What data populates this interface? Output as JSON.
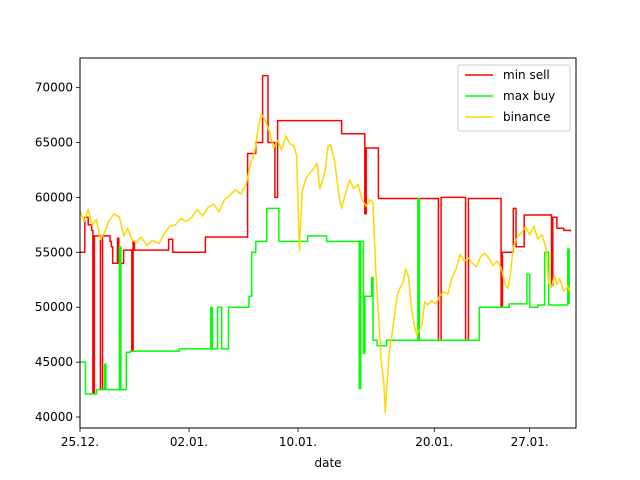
{
  "chart_data": {
    "type": "line",
    "title": "",
    "xlabel": "date",
    "ylabel": "",
    "x_ticks": [
      "25.12.",
      "02.01.",
      "10.01.",
      "20.01.",
      "27.01."
    ],
    "x_tick_day_index": [
      0,
      8,
      16,
      26,
      33
    ],
    "x_range_day_index": [
      0,
      36.4
    ],
    "y_ticks": [
      40000,
      45000,
      50000,
      55000,
      60000,
      65000,
      70000
    ],
    "ylim": [
      39000,
      72700
    ],
    "legend_position": "top-right",
    "series": [
      {
        "name": "min sell",
        "color": "#ff0000",
        "points": [
          [
            0,
            55000
          ],
          [
            0.35,
            55000
          ],
          [
            0.35,
            58200
          ],
          [
            0.6,
            58200
          ],
          [
            0.6,
            57500
          ],
          [
            0.85,
            57500
          ],
          [
            0.85,
            57000
          ],
          [
            0.95,
            57000
          ],
          [
            0.95,
            42200
          ],
          [
            1.05,
            42200
          ],
          [
            1.05,
            56500
          ],
          [
            1.5,
            56500
          ],
          [
            1.5,
            42500
          ],
          [
            1.65,
            42500
          ],
          [
            1.65,
            56500
          ],
          [
            2.2,
            56500
          ],
          [
            2.2,
            56000
          ],
          [
            2.3,
            56000
          ],
          [
            2.3,
            55500
          ],
          [
            2.4,
            55500
          ],
          [
            2.4,
            54000
          ],
          [
            2.75,
            54000
          ],
          [
            2.75,
            56300
          ],
          [
            2.85,
            56300
          ],
          [
            2.85,
            54000
          ],
          [
            3.2,
            54000
          ],
          [
            3.2,
            55200
          ],
          [
            3.8,
            55200
          ],
          [
            3.8,
            46000
          ],
          [
            3.9,
            46000
          ],
          [
            3.9,
            56000
          ],
          [
            4.0,
            56000
          ],
          [
            4.0,
            55200
          ],
          [
            6.5,
            55200
          ],
          [
            6.5,
            56200
          ],
          [
            6.8,
            56200
          ],
          [
            6.8,
            55000
          ],
          [
            9.2,
            55000
          ],
          [
            9.2,
            56400
          ],
          [
            12.3,
            56400
          ],
          [
            12.3,
            64000
          ],
          [
            12.9,
            64000
          ],
          [
            12.9,
            65000
          ],
          [
            13.4,
            65000
          ],
          [
            13.4,
            71100
          ],
          [
            13.8,
            71100
          ],
          [
            13.8,
            65000
          ],
          [
            14.3,
            65000
          ],
          [
            14.3,
            60000
          ],
          [
            14.5,
            60000
          ],
          [
            14.5,
            67000
          ],
          [
            19.2,
            67000
          ],
          [
            19.2,
            65800
          ],
          [
            20.9,
            65800
          ],
          [
            20.9,
            58500
          ],
          [
            21.0,
            58500
          ],
          [
            21.0,
            64500
          ],
          [
            21.9,
            64500
          ],
          [
            21.9,
            59900
          ],
          [
            26.3,
            59900
          ],
          [
            26.3,
            47000
          ],
          [
            26.5,
            47000
          ],
          [
            26.5,
            60000
          ],
          [
            28.3,
            60000
          ],
          [
            28.3,
            47000
          ],
          [
            28.5,
            47000
          ],
          [
            28.5,
            59900
          ],
          [
            30.9,
            59900
          ],
          [
            30.9,
            50000
          ],
          [
            31.0,
            50000
          ],
          [
            31.0,
            55000
          ],
          [
            31.8,
            55000
          ],
          [
            31.8,
            59000
          ],
          [
            32.0,
            59000
          ],
          [
            32.0,
            55500
          ],
          [
            32.6,
            55500
          ],
          [
            32.6,
            58400
          ],
          [
            34.6,
            58400
          ],
          [
            34.6,
            52000
          ],
          [
            34.7,
            52000
          ],
          [
            34.7,
            58200
          ],
          [
            35.0,
            58200
          ],
          [
            35.0,
            57200
          ],
          [
            35.5,
            57200
          ],
          [
            35.5,
            57000
          ],
          [
            36.0,
            57000
          ],
          [
            36.0,
            56900
          ]
        ]
      },
      {
        "name": "max buy",
        "color": "#00ff00",
        "points": [
          [
            0,
            45000
          ],
          [
            0.4,
            45000
          ],
          [
            0.4,
            42100
          ],
          [
            1.2,
            42100
          ],
          [
            1.2,
            42500
          ],
          [
            1.8,
            42500
          ],
          [
            1.8,
            44800
          ],
          [
            1.9,
            44800
          ],
          [
            1.9,
            42500
          ],
          [
            2.9,
            42500
          ],
          [
            2.9,
            55500
          ],
          [
            3.0,
            55500
          ],
          [
            3.0,
            42500
          ],
          [
            3.4,
            42500
          ],
          [
            3.4,
            45900
          ],
          [
            3.7,
            45900
          ],
          [
            3.7,
            46000
          ],
          [
            7.3,
            46000
          ],
          [
            7.3,
            46200
          ],
          [
            9.6,
            46200
          ],
          [
            9.6,
            50000
          ],
          [
            9.7,
            50000
          ],
          [
            9.7,
            46200
          ],
          [
            10.1,
            46200
          ],
          [
            10.1,
            50000
          ],
          [
            10.4,
            50000
          ],
          [
            10.4,
            46200
          ],
          [
            10.9,
            46200
          ],
          [
            10.9,
            50000
          ],
          [
            12.4,
            50000
          ],
          [
            12.4,
            51000
          ],
          [
            12.6,
            51000
          ],
          [
            12.6,
            55000
          ],
          [
            12.9,
            55000
          ],
          [
            12.9,
            56000
          ],
          [
            13.7,
            56000
          ],
          [
            13.7,
            59000
          ],
          [
            14.6,
            59000
          ],
          [
            14.6,
            56000
          ],
          [
            16.7,
            56000
          ],
          [
            16.7,
            56500
          ],
          [
            18.1,
            56500
          ],
          [
            18.1,
            56000
          ],
          [
            20.5,
            56000
          ],
          [
            20.5,
            42600
          ],
          [
            20.6,
            42600
          ],
          [
            20.6,
            56000
          ],
          [
            20.8,
            56000
          ],
          [
            20.8,
            45800
          ],
          [
            20.9,
            45800
          ],
          [
            20.9,
            51000
          ],
          [
            21.4,
            51000
          ],
          [
            21.4,
            52700
          ],
          [
            21.5,
            52700
          ],
          [
            21.5,
            47000
          ],
          [
            21.8,
            47000
          ],
          [
            21.8,
            46500
          ],
          [
            22.5,
            46500
          ],
          [
            22.5,
            47000
          ],
          [
            24.8,
            47000
          ],
          [
            24.8,
            59900
          ],
          [
            24.9,
            59900
          ],
          [
            24.9,
            47000
          ],
          [
            29.3,
            47000
          ],
          [
            29.3,
            50000
          ],
          [
            31.5,
            50000
          ],
          [
            31.5,
            50300
          ],
          [
            32.8,
            50300
          ],
          [
            32.8,
            53000
          ],
          [
            33.0,
            53000
          ],
          [
            33.0,
            50000
          ],
          [
            33.6,
            50000
          ],
          [
            33.6,
            50200
          ],
          [
            34.1,
            50200
          ],
          [
            34.1,
            55000
          ],
          [
            34.4,
            55000
          ],
          [
            34.4,
            50200
          ],
          [
            35.8,
            50200
          ],
          [
            35.8,
            55300
          ],
          [
            35.9,
            55300
          ],
          [
            35.9,
            50300
          ]
        ]
      },
      {
        "name": "binance",
        "color": "#ffd700",
        "points": [
          [
            0,
            58800
          ],
          [
            0.3,
            57800
          ],
          [
            0.6,
            58900
          ],
          [
            0.9,
            57500
          ],
          [
            1.2,
            58000
          ],
          [
            1.5,
            56200
          ],
          [
            1.8,
            56800
          ],
          [
            2.1,
            57800
          ],
          [
            2.5,
            58500
          ],
          [
            2.9,
            58200
          ],
          [
            3.2,
            56500
          ],
          [
            3.5,
            57200
          ],
          [
            3.8,
            56200
          ],
          [
            4.1,
            55900
          ],
          [
            4.5,
            56400
          ],
          [
            4.9,
            55600
          ],
          [
            5.3,
            56100
          ],
          [
            5.8,
            55800
          ],
          [
            6.2,
            56700
          ],
          [
            6.6,
            57400
          ],
          [
            7.0,
            57500
          ],
          [
            7.4,
            58100
          ],
          [
            7.8,
            57800
          ],
          [
            8.2,
            58200
          ],
          [
            8.6,
            58900
          ],
          [
            9.0,
            58300
          ],
          [
            9.4,
            59100
          ],
          [
            9.8,
            59400
          ],
          [
            10.2,
            58700
          ],
          [
            10.6,
            59800
          ],
          [
            11.0,
            60200
          ],
          [
            11.4,
            60700
          ],
          [
            11.8,
            60300
          ],
          [
            12.2,
            61200
          ],
          [
            12.5,
            63000
          ],
          [
            12.8,
            64000
          ],
          [
            13.1,
            66500
          ],
          [
            13.3,
            67600
          ],
          [
            13.6,
            67000
          ],
          [
            13.9,
            66000
          ],
          [
            14.2,
            64500
          ],
          [
            14.5,
            65200
          ],
          [
            14.8,
            64300
          ],
          [
            15.1,
            65600
          ],
          [
            15.4,
            64900
          ],
          [
            15.7,
            64700
          ],
          [
            15.9,
            63800
          ],
          [
            16.1,
            55200
          ],
          [
            16.3,
            60500
          ],
          [
            16.6,
            61800
          ],
          [
            16.9,
            62300
          ],
          [
            17.2,
            62700
          ],
          [
            17.4,
            63100
          ],
          [
            17.6,
            60800
          ],
          [
            17.8,
            61500
          ],
          [
            18.0,
            62500
          ],
          [
            18.2,
            64700
          ],
          [
            18.4,
            64800
          ],
          [
            18.7,
            63200
          ],
          [
            19.0,
            60200
          ],
          [
            19.2,
            59000
          ],
          [
            19.5,
            60400
          ],
          [
            19.8,
            61600
          ],
          [
            20.1,
            60800
          ],
          [
            20.4,
            61200
          ],
          [
            20.7,
            59800
          ],
          [
            21.0,
            59200
          ],
          [
            21.3,
            59800
          ],
          [
            21.5,
            59500
          ],
          [
            21.7,
            53500
          ],
          [
            21.9,
            49500
          ],
          [
            22.1,
            45200
          ],
          [
            22.3,
            43000
          ],
          [
            22.4,
            40400
          ],
          [
            22.5,
            42500
          ],
          [
            22.7,
            46000
          ],
          [
            22.9,
            47500
          ],
          [
            23.1,
            49500
          ],
          [
            23.3,
            51200
          ],
          [
            23.5,
            51800
          ],
          [
            23.7,
            52200
          ],
          [
            23.9,
            53500
          ],
          [
            24.1,
            52800
          ],
          [
            24.3,
            50200
          ],
          [
            24.5,
            48500
          ],
          [
            24.7,
            47500
          ],
          [
            24.9,
            47900
          ],
          [
            25.1,
            48400
          ],
          [
            25.3,
            50500
          ],
          [
            25.5,
            50200
          ],
          [
            25.8,
            50600
          ],
          [
            26.1,
            50300
          ],
          [
            26.4,
            51000
          ],
          [
            26.7,
            51400
          ],
          [
            27.0,
            51200
          ],
          [
            27.3,
            52700
          ],
          [
            27.6,
            53500
          ],
          [
            27.9,
            54800
          ],
          [
            28.2,
            54200
          ],
          [
            28.5,
            54500
          ],
          [
            28.8,
            54000
          ],
          [
            29.1,
            53700
          ],
          [
            29.4,
            54600
          ],
          [
            29.7,
            54900
          ],
          [
            30.0,
            54500
          ],
          [
            30.3,
            53800
          ],
          [
            30.6,
            54200
          ],
          [
            30.9,
            53600
          ],
          [
            31.2,
            52100
          ],
          [
            31.4,
            51700
          ],
          [
            31.6,
            53200
          ],
          [
            31.8,
            55500
          ],
          [
            32.1,
            56400
          ],
          [
            32.4,
            56800
          ],
          [
            32.7,
            57300
          ],
          [
            33.0,
            56600
          ],
          [
            33.3,
            57400
          ],
          [
            33.6,
            56200
          ],
          [
            33.9,
            56600
          ],
          [
            34.2,
            55400
          ],
          [
            34.4,
            52200
          ],
          [
            34.6,
            51800
          ],
          [
            34.8,
            52900
          ],
          [
            35.0,
            52100
          ],
          [
            35.2,
            52600
          ],
          [
            35.5,
            51500
          ],
          [
            35.8,
            51900
          ],
          [
            36.0,
            51300
          ]
        ]
      }
    ]
  }
}
